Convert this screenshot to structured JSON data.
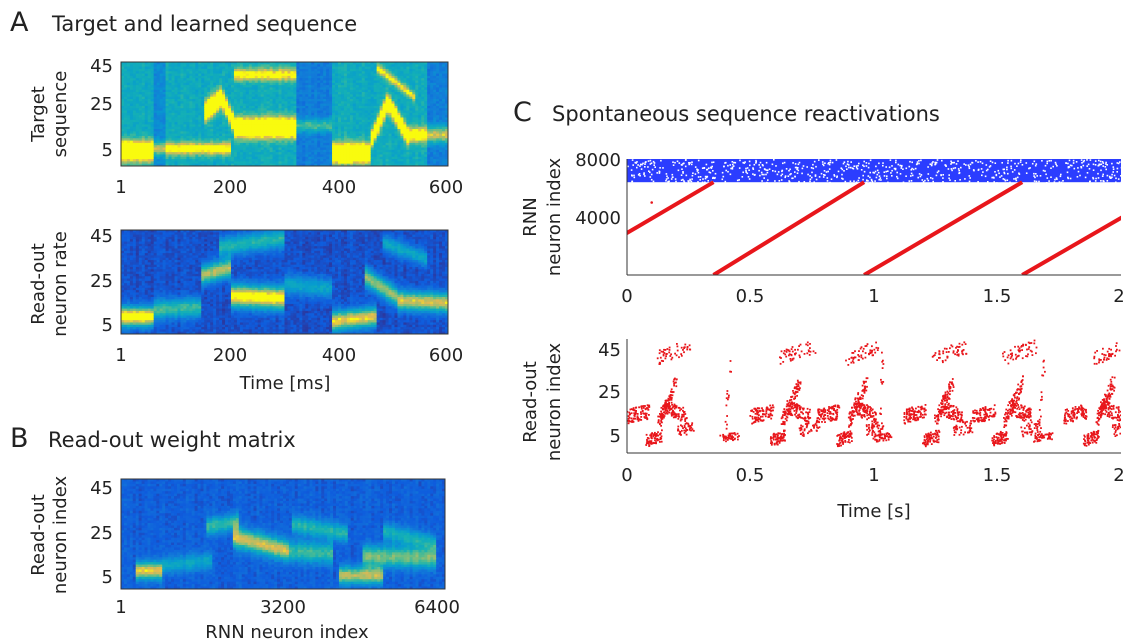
{
  "panels": {
    "A": {
      "letter": "A",
      "title": "Target and learned sequence"
    },
    "B": {
      "letter": "B",
      "title": "Read-out weight matrix"
    },
    "C": {
      "letter": "C",
      "title": "Spontaneous sequence reactivations"
    }
  },
  "chart_data": [
    {
      "id": "A_target",
      "type": "heatmap",
      "ylabel": [
        "Target",
        "sequence"
      ],
      "x_ticks": [
        "1",
        "200",
        "400",
        "600"
      ],
      "y_ticks": [
        "45",
        "25",
        "5"
      ],
      "xlim": [
        1,
        600
      ],
      "ylim": [
        1,
        45
      ],
      "colormap": "parula",
      "blobs": [
        {
          "x0": 1,
          "x1": 60,
          "y0": 7,
          "y1": 7,
          "s": 3,
          "a": 1.0
        },
        {
          "x0": 60,
          "x1": 200,
          "y0": 8,
          "y1": 8,
          "s": 2,
          "a": 0.55
        },
        {
          "x0": 155,
          "x1": 185,
          "y0": 24,
          "y1": 30,
          "s": 3,
          "a": 0.95
        },
        {
          "x0": 185,
          "x1": 210,
          "y0": 30,
          "y1": 18,
          "s": 2.5,
          "a": 0.9
        },
        {
          "x0": 210,
          "x1": 320,
          "y0": 17,
          "y1": 17,
          "s": 3,
          "a": 1.0
        },
        {
          "x0": 210,
          "x1": 320,
          "y0": 40,
          "y1": 40,
          "s": 2,
          "a": 0.5
        },
        {
          "x0": 325,
          "x1": 385,
          "y0": 18,
          "y1": 18,
          "s": 2,
          "a": 0.4
        },
        {
          "x0": 390,
          "x1": 460,
          "y0": 6,
          "y1": 6,
          "s": 3,
          "a": 1.0
        },
        {
          "x0": 460,
          "x1": 490,
          "y0": 12,
          "y1": 28,
          "s": 2.5,
          "a": 0.95
        },
        {
          "x0": 490,
          "x1": 530,
          "y0": 28,
          "y1": 12,
          "s": 2.5,
          "a": 0.95
        },
        {
          "x0": 530,
          "x1": 600,
          "y0": 14,
          "y1": 14,
          "s": 2.5,
          "a": 0.6
        },
        {
          "x0": 470,
          "x1": 540,
          "y0": 43,
          "y1": 30,
          "s": 1.5,
          "a": 0.45
        }
      ],
      "bands": [
        {
          "x0": 60,
          "x1": 85,
          "v": 0.35
        },
        {
          "x0": 320,
          "x1": 385,
          "v": 0.3
        },
        {
          "x0": 560,
          "x1": 600,
          "v": 0.3
        }
      ]
    },
    {
      "id": "A_readout",
      "type": "heatmap",
      "ylabel": [
        "Read-out",
        "neuron rate"
      ],
      "xlabel": "Time [ms]",
      "x_ticks": [
        "1",
        "200",
        "400",
        "600"
      ],
      "y_ticks": [
        "45",
        "25",
        "5"
      ],
      "xlim": [
        1,
        600
      ],
      "ylim": [
        1,
        45
      ],
      "colormap": "parula",
      "blobs": [
        {
          "x0": 1,
          "x1": 60,
          "y0": 8,
          "y1": 8,
          "s": 3,
          "a": 1.0
        },
        {
          "x0": 60,
          "x1": 150,
          "y0": 11,
          "y1": 12,
          "s": 3,
          "a": 0.55
        },
        {
          "x0": 150,
          "x1": 200,
          "y0": 26,
          "y1": 29,
          "s": 3,
          "a": 0.75
        },
        {
          "x0": 200,
          "x1": 300,
          "y0": 17,
          "y1": 16,
          "s": 3.5,
          "a": 0.95
        },
        {
          "x0": 180,
          "x1": 300,
          "y0": 38,
          "y1": 42,
          "s": 3,
          "a": 0.5
        },
        {
          "x0": 300,
          "x1": 390,
          "y0": 22,
          "y1": 20,
          "s": 3,
          "a": 0.4
        },
        {
          "x0": 390,
          "x1": 470,
          "y0": 6,
          "y1": 8,
          "s": 3,
          "a": 0.85
        },
        {
          "x0": 450,
          "x1": 510,
          "y0": 25,
          "y1": 16,
          "s": 3,
          "a": 0.7
        },
        {
          "x0": 510,
          "x1": 600,
          "y0": 15,
          "y1": 14,
          "s": 3,
          "a": 0.8
        },
        {
          "x0": 480,
          "x1": 560,
          "y0": 40,
          "y1": 33,
          "s": 2.5,
          "a": 0.4
        }
      ],
      "bands": []
    },
    {
      "id": "B_weights",
      "type": "heatmap",
      "ylabel": [
        "Read-out",
        "neuron index"
      ],
      "xlabel": "RNN neuron index",
      "x_ticks": [
        "1",
        "3200",
        "6400"
      ],
      "y_ticks": [
        "45",
        "25",
        "5"
      ],
      "xlim": [
        1,
        6400
      ],
      "ylim": [
        1,
        45
      ],
      "colormap": "parula",
      "blobs": [
        {
          "x0": 300,
          "x1": 800,
          "y0": 8,
          "y1": 8,
          "s": 2.5,
          "a": 0.8
        },
        {
          "x0": 800,
          "x1": 1800,
          "y0": 10,
          "y1": 12,
          "s": 2.5,
          "a": 0.35
        },
        {
          "x0": 1700,
          "x1": 2300,
          "y0": 26,
          "y1": 28,
          "s": 2.5,
          "a": 0.5
        },
        {
          "x0": 2200,
          "x1": 3300,
          "y0": 22,
          "y1": 16,
          "s": 3,
          "a": 0.75
        },
        {
          "x0": 3300,
          "x1": 4200,
          "y0": 16,
          "y1": 15,
          "s": 3,
          "a": 0.5
        },
        {
          "x0": 3400,
          "x1": 4500,
          "y0": 27,
          "y1": 23,
          "s": 2.5,
          "a": 0.45
        },
        {
          "x0": 4300,
          "x1": 5200,
          "y0": 6,
          "y1": 6,
          "s": 2.5,
          "a": 0.7
        },
        {
          "x0": 4800,
          "x1": 6200,
          "y0": 14,
          "y1": 13,
          "s": 3,
          "a": 0.6
        },
        {
          "x0": 5200,
          "x1": 6200,
          "y0": 24,
          "y1": 19,
          "s": 2.5,
          "a": 0.4
        }
      ],
      "bands": []
    },
    {
      "id": "C_rnn",
      "type": "scatter",
      "ylabel": [
        "RNN",
        "neuron index"
      ],
      "x_ticks": [
        "0",
        "0.5",
        "1",
        "1.5",
        "2"
      ],
      "y_ticks": [
        "8000",
        "4000"
      ],
      "xlim": [
        0,
        2
      ],
      "ylim": [
        0,
        8000
      ],
      "inhibitory": {
        "color": "#1428ff",
        "ymin": 6400,
        "ymax": 8000
      },
      "excitatory": {
        "color": "#e8161b",
        "sweeps": [
          {
            "x0": -0.29,
            "x1": 0.35
          },
          {
            "x0": 0.35,
            "x1": 0.96
          },
          {
            "x0": 0.96,
            "x1": 1.6
          },
          {
            "x0": 1.6,
            "x1": 2.25
          }
        ],
        "ymax": 6400
      }
    },
    {
      "id": "C_readout",
      "type": "scatter",
      "ylabel": [
        "Read-out",
        "neuron index"
      ],
      "xlabel": "Time [s]",
      "x_ticks": [
        "0",
        "0.5",
        "1",
        "1.5",
        "2"
      ],
      "y_ticks": [
        "45",
        "25",
        "5"
      ],
      "xlim": [
        0,
        2
      ],
      "ylim": [
        1,
        48
      ],
      "color": "#e8161b",
      "bursts": [
        {
          "t": 0.0,
          "full": true
        },
        {
          "t": 0.38,
          "full": false
        },
        {
          "t": 0.5,
          "full": true
        },
        {
          "t": 0.77,
          "full": true
        },
        {
          "t": 1.0,
          "full": false
        },
        {
          "t": 1.12,
          "full": true
        },
        {
          "t": 1.4,
          "full": true
        },
        {
          "t": 1.65,
          "full": false
        },
        {
          "t": 1.77,
          "full": true
        }
      ]
    }
  ]
}
